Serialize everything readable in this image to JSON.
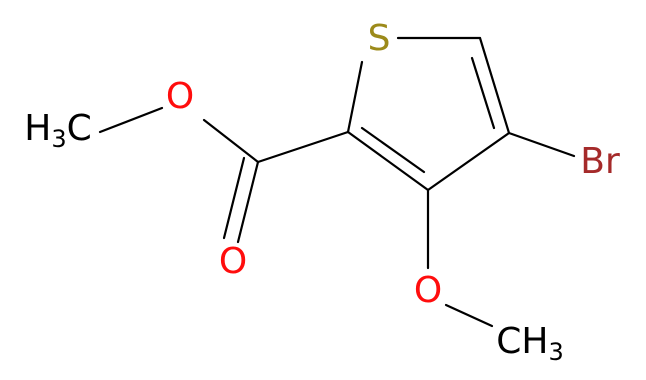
{
  "molecule": {
    "sulfur": "S",
    "bromine": "Br",
    "ester_oxygen": "O",
    "carbonyl_oxygen": "O",
    "methoxy_oxygen": "O",
    "ester_methyl": {
      "main": "H",
      "sub": "3",
      "tail": "C"
    },
    "methoxy_methyl": {
      "main": "CH",
      "sub": "3"
    }
  }
}
